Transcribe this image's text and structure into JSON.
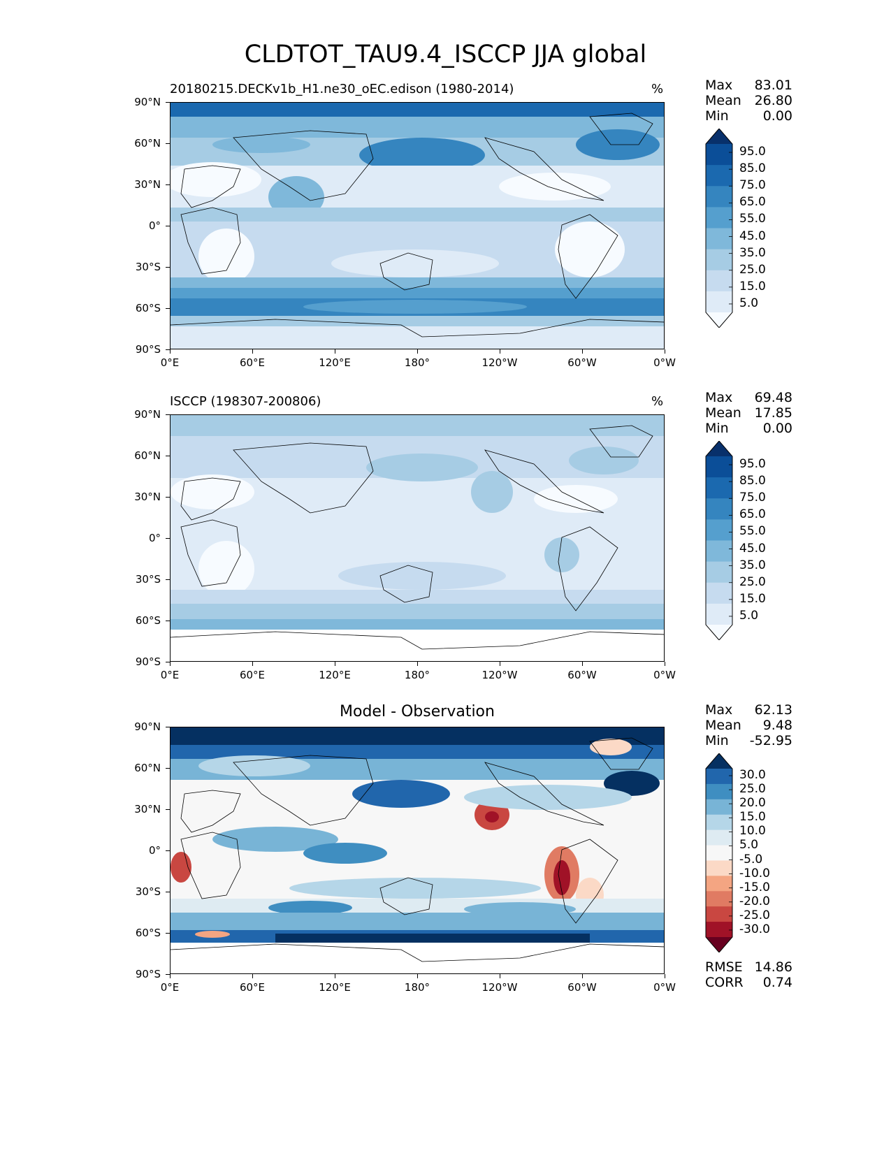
{
  "title": "CLDTOT_TAU9.4_ISCCP JJA global",
  "lat_labels": [
    "90°N",
    "60°N",
    "30°N",
    "0°",
    "30°S",
    "60°S",
    "90°S"
  ],
  "lon_labels": [
    "0°E",
    "60°E",
    "120°E",
    "180°",
    "120°W",
    "60°W",
    "0°W"
  ],
  "panels": [
    {
      "title": "20180215.DECKv1b_H1.ne30_oEC.edison (1980-2014)",
      "units": "%",
      "stats": {
        "max_label": "Max",
        "max": "83.01",
        "mean_label": "Mean",
        "mean": "26.80",
        "min_label": "Min",
        "min": "0.00"
      },
      "colorbar": {
        "labels": [
          "95.0",
          "85.0",
          "75.0",
          "65.0",
          "55.0",
          "45.0",
          "35.0",
          "25.0",
          "15.0",
          "5.0"
        ],
        "colors": [
          "#08306b",
          "#0b4e98",
          "#1b69af",
          "#3585bf",
          "#559fce",
          "#7fb8da",
          "#a6cce4",
          "#c6dbef",
          "#dfebf7",
          "#f7fbff"
        ]
      }
    },
    {
      "title": "ISCCP (198307-200806)",
      "units": "%",
      "stats": {
        "max_label": "Max",
        "max": "69.48",
        "mean_label": "Mean",
        "mean": "17.85",
        "min_label": "Min",
        "min": "0.00"
      },
      "colorbar": {
        "labels": [
          "95.0",
          "85.0",
          "75.0",
          "65.0",
          "55.0",
          "45.0",
          "35.0",
          "25.0",
          "15.0",
          "5.0"
        ],
        "colors": [
          "#08306b",
          "#0b4e98",
          "#1b69af",
          "#3585bf",
          "#559fce",
          "#7fb8da",
          "#a6cce4",
          "#c6dbef",
          "#dfebf7",
          "#f7fbff"
        ]
      }
    },
    {
      "title": "Model - Observation",
      "stats": {
        "max_label": "Max",
        "max": "62.13",
        "mean_label": "Mean",
        "mean": "9.48",
        "min_label": "Min",
        "min": "-52.95"
      },
      "metrics": {
        "rmse_label": "RMSE",
        "rmse": "14.86",
        "corr_label": "CORR",
        "corr": "0.74"
      },
      "colorbar": {
        "labels": [
          "30.0",
          "25.0",
          "20.0",
          "15.0",
          "10.0",
          "5.0",
          "-5.0",
          "-10.0",
          "-15.0",
          "-20.0",
          "-25.0",
          "-30.0"
        ],
        "colors": [
          "#053061",
          "#2166ac",
          "#3f8ec1",
          "#78b4d6",
          "#b5d6e8",
          "#deebf2",
          "#f7f7f7",
          "#fbd9c6",
          "#f4a582",
          "#e07b63",
          "#c94741",
          "#a01227",
          "#67001f"
        ]
      }
    }
  ]
}
